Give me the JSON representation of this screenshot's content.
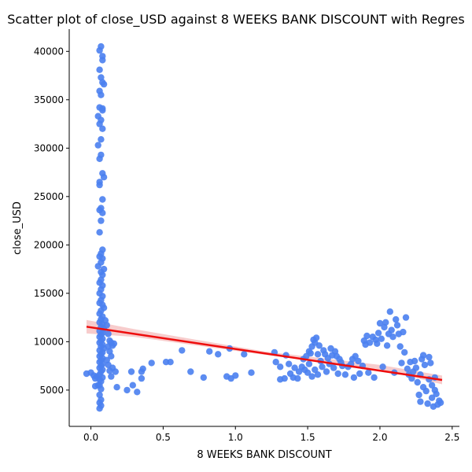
{
  "chart_data": {
    "type": "scatter",
    "title": "Scatter plot of close_USD against 8 WEEKS BANK DISCOUNT with Regres",
    "xlabel": "8 WEEKS BANK DISCOUNT",
    "ylabel": "close_USD",
    "xlim": [
      -0.15,
      2.55
    ],
    "ylim": [
      1250,
      42300
    ],
    "x_ticks": [
      0.0,
      0.5,
      1.0,
      1.5,
      2.0,
      2.5
    ],
    "x_tick_labels": [
      "0.0",
      "0.5",
      "1.0",
      "1.5",
      "2.0",
      "2.5"
    ],
    "y_ticks": [
      5000,
      10000,
      15000,
      20000,
      25000,
      30000,
      35000,
      40000
    ],
    "y_tick_labels": [
      "5000",
      "10000",
      "15000",
      "20000",
      "25000",
      "30000",
      "35000",
      "40000"
    ],
    "grid": false,
    "colors": {
      "points": "#4a80f0",
      "regression_line": "#ee0d0d",
      "confidence_band": "#f4b6b6"
    },
    "regression": {
      "x": [
        -0.03,
        2.43
      ],
      "y": [
        11550,
        6050
      ]
    },
    "confidence_band": {
      "x": [
        -0.03,
        0.3,
        1.2,
        2.0,
        2.43
      ],
      "lower": [
        10850,
        10500,
        8650,
        7150,
        5600
      ],
      "upper": [
        12250,
        11300,
        9000,
        7600,
        6500
      ]
    },
    "points": [
      [
        -0.03,
        6700
      ],
      [
        0.0,
        6800
      ],
      [
        0.02,
        6500
      ],
      [
        0.03,
        6200
      ],
      [
        0.05,
        5500
      ],
      [
        0.04,
        6400
      ],
      [
        0.06,
        6100
      ],
      [
        0.03,
        5400
      ],
      [
        0.07,
        40500
      ],
      [
        0.06,
        40100
      ],
      [
        0.08,
        39500
      ],
      [
        0.08,
        39100
      ],
      [
        0.06,
        38100
      ],
      [
        0.07,
        37300
      ],
      [
        0.08,
        36800
      ],
      [
        0.09,
        36600
      ],
      [
        0.06,
        35900
      ],
      [
        0.07,
        35500
      ],
      [
        0.08,
        34100
      ],
      [
        0.06,
        34200
      ],
      [
        0.08,
        33900
      ],
      [
        0.05,
        33300
      ],
      [
        0.07,
        32900
      ],
      [
        0.06,
        32500
      ],
      [
        0.08,
        32000
      ],
      [
        0.07,
        30900
      ],
      [
        0.05,
        30300
      ],
      [
        0.07,
        29300
      ],
      [
        0.06,
        28900
      ],
      [
        0.08,
        27400
      ],
      [
        0.09,
        27000
      ],
      [
        0.06,
        26500
      ],
      [
        0.06,
        26200
      ],
      [
        0.08,
        24700
      ],
      [
        0.07,
        23800
      ],
      [
        0.06,
        23600
      ],
      [
        0.08,
        23300
      ],
      [
        0.07,
        22500
      ],
      [
        0.06,
        21300
      ],
      [
        0.08,
        19500
      ],
      [
        0.07,
        19100
      ],
      [
        0.06,
        18800
      ],
      [
        0.08,
        18600
      ],
      [
        0.07,
        18200
      ],
      [
        0.05,
        17800
      ],
      [
        0.09,
        17500
      ],
      [
        0.07,
        17200
      ],
      [
        0.08,
        16900
      ],
      [
        0.07,
        16400
      ],
      [
        0.06,
        16100
      ],
      [
        0.08,
        15800
      ],
      [
        0.07,
        15400
      ],
      [
        0.06,
        15000
      ],
      [
        0.08,
        14700
      ],
      [
        0.07,
        14300
      ],
      [
        0.06,
        14000
      ],
      [
        0.08,
        13800
      ],
      [
        0.09,
        13500
      ],
      [
        0.07,
        13200
      ],
      [
        0.06,
        12900
      ],
      [
        0.08,
        12600
      ],
      [
        0.07,
        12300
      ],
      [
        0.06,
        12000
      ],
      [
        0.08,
        11800
      ],
      [
        0.07,
        11500
      ],
      [
        0.09,
        11300
      ],
      [
        0.06,
        11100
      ],
      [
        0.08,
        10900
      ],
      [
        0.07,
        10700
      ],
      [
        0.06,
        10500
      ],
      [
        0.08,
        10300
      ],
      [
        0.07,
        10100
      ],
      [
        0.06,
        9900
      ],
      [
        0.08,
        9700
      ],
      [
        0.07,
        9500
      ],
      [
        0.09,
        9300
      ],
      [
        0.06,
        9100
      ],
      [
        0.08,
        8900
      ],
      [
        0.07,
        8700
      ],
      [
        0.06,
        8500
      ],
      [
        0.08,
        8300
      ],
      [
        0.07,
        8100
      ],
      [
        0.06,
        7900
      ],
      [
        0.08,
        7700
      ],
      [
        0.07,
        7500
      ],
      [
        0.06,
        7300
      ],
      [
        0.08,
        7100
      ],
      [
        0.07,
        6900
      ],
      [
        0.06,
        6600
      ],
      [
        0.08,
        6300
      ],
      [
        0.07,
        5900
      ],
      [
        0.06,
        5500
      ],
      [
        0.07,
        5100
      ],
      [
        0.06,
        4500
      ],
      [
        0.07,
        4000
      ],
      [
        0.06,
        3700
      ],
      [
        0.07,
        3400
      ],
      [
        0.06,
        3100
      ],
      [
        0.1,
        12200
      ],
      [
        0.11,
        11700
      ],
      [
        0.12,
        10800
      ],
      [
        0.13,
        10100
      ],
      [
        0.12,
        9500
      ],
      [
        0.14,
        9900
      ],
      [
        0.13,
        9000
      ],
      [
        0.15,
        9600
      ],
      [
        0.16,
        9800
      ],
      [
        0.14,
        8500
      ],
      [
        0.11,
        8100
      ],
      [
        0.12,
        7600
      ],
      [
        0.15,
        7300
      ],
      [
        0.13,
        7000
      ],
      [
        0.17,
        6900
      ],
      [
        0.14,
        6400
      ],
      [
        0.18,
        5300
      ],
      [
        0.25,
        5000
      ],
      [
        0.28,
        6900
      ],
      [
        0.29,
        5500
      ],
      [
        0.32,
        4800
      ],
      [
        0.35,
        6200
      ],
      [
        0.35,
        6900
      ],
      [
        0.36,
        7200
      ],
      [
        0.42,
        7800
      ],
      [
        0.52,
        7900
      ],
      [
        0.55,
        7900
      ],
      [
        0.63,
        9100
      ],
      [
        0.69,
        6900
      ],
      [
        0.78,
        6300
      ],
      [
        0.82,
        9000
      ],
      [
        0.88,
        8700
      ],
      [
        0.94,
        6400
      ],
      [
        0.96,
        9300
      ],
      [
        0.97,
        6200
      ],
      [
        1.0,
        6500
      ],
      [
        1.06,
        8700
      ],
      [
        1.11,
        6800
      ],
      [
        1.27,
        8900
      ],
      [
        1.28,
        7900
      ],
      [
        1.31,
        7400
      ],
      [
        1.31,
        6100
      ],
      [
        1.34,
        6200
      ],
      [
        1.35,
        8600
      ],
      [
        1.37,
        7700
      ],
      [
        1.38,
        6700
      ],
      [
        1.4,
        6300
      ],
      [
        1.41,
        7300
      ],
      [
        1.43,
        6200
      ],
      [
        1.44,
        6900
      ],
      [
        1.46,
        7400
      ],
      [
        1.47,
        8200
      ],
      [
        1.48,
        7100
      ],
      [
        1.49,
        8500
      ],
      [
        1.5,
        6800
      ],
      [
        1.51,
        7700
      ],
      [
        1.51,
        9000
      ],
      [
        1.52,
        8800
      ],
      [
        1.53,
        9500
      ],
      [
        1.53,
        6400
      ],
      [
        1.54,
        10200
      ],
      [
        1.55,
        9900
      ],
      [
        1.55,
        7100
      ],
      [
        1.56,
        10400
      ],
      [
        1.57,
        8700
      ],
      [
        1.57,
        6600
      ],
      [
        1.58,
        9600
      ],
      [
        1.59,
        8000
      ],
      [
        1.6,
        7400
      ],
      [
        1.61,
        9100
      ],
      [
        1.62,
        8700
      ],
      [
        1.63,
        6900
      ],
      [
        1.64,
        8300
      ],
      [
        1.65,
        7700
      ],
      [
        1.66,
        9300
      ],
      [
        1.67,
        8600
      ],
      [
        1.68,
        7300
      ],
      [
        1.69,
        9000
      ],
      [
        1.7,
        8500
      ],
      [
        1.71,
        6700
      ],
      [
        1.72,
        8200
      ],
      [
        1.73,
        7900
      ],
      [
        1.74,
        7500
      ],
      [
        1.76,
        6600
      ],
      [
        1.78,
        7400
      ],
      [
        1.8,
        7700
      ],
      [
        1.81,
        8200
      ],
      [
        1.82,
        6300
      ],
      [
        1.83,
        8500
      ],
      [
        1.85,
        8000
      ],
      [
        1.86,
        6700
      ],
      [
        1.88,
        7500
      ],
      [
        1.89,
        10100
      ],
      [
        1.9,
        9700
      ],
      [
        1.91,
        10600
      ],
      [
        1.92,
        6800
      ],
      [
        1.93,
        9900
      ],
      [
        1.95,
        10500
      ],
      [
        1.96,
        6300
      ],
      [
        1.97,
        10200
      ],
      [
        1.98,
        9800
      ],
      [
        1.99,
        10900
      ],
      [
        2.0,
        11900
      ],
      [
        2.01,
        10300
      ],
      [
        2.02,
        7400
      ],
      [
        2.03,
        11500
      ],
      [
        2.04,
        12000
      ],
      [
        2.05,
        9600
      ],
      [
        2.06,
        10800
      ],
      [
        2.07,
        13100
      ],
      [
        2.08,
        11200
      ],
      [
        2.09,
        10500
      ],
      [
        2.1,
        6800
      ],
      [
        2.11,
        12300
      ],
      [
        2.12,
        11700
      ],
      [
        2.13,
        10800
      ],
      [
        2.14,
        9500
      ],
      [
        2.15,
        7800
      ],
      [
        2.16,
        11000
      ],
      [
        2.17,
        8900
      ],
      [
        2.18,
        12500
      ],
      [
        2.19,
        7200
      ],
      [
        2.2,
        6600
      ],
      [
        2.21,
        7900
      ],
      [
        2.23,
        6900
      ],
      [
        2.25,
        7300
      ],
      [
        2.26,
        5800
      ],
      [
        2.27,
        4500
      ],
      [
        2.28,
        3800
      ],
      [
        2.29,
        8200
      ],
      [
        2.3,
        8600
      ],
      [
        2.31,
        7600
      ],
      [
        2.32,
        4900
      ],
      [
        2.33,
        3600
      ],
      [
        2.34,
        8400
      ],
      [
        2.35,
        7800
      ],
      [
        2.36,
        4200
      ],
      [
        2.37,
        3300
      ],
      [
        2.38,
        6300
      ],
      [
        2.38,
        5000
      ],
      [
        2.39,
        4600
      ],
      [
        2.4,
        3500
      ],
      [
        2.41,
        3900
      ],
      [
        2.42,
        3700
      ],
      [
        2.36,
        5500
      ],
      [
        2.34,
        6100
      ],
      [
        2.3,
        5300
      ],
      [
        2.28,
        6600
      ],
      [
        2.24,
        8000
      ],
      [
        2.22,
        6200
      ]
    ]
  }
}
